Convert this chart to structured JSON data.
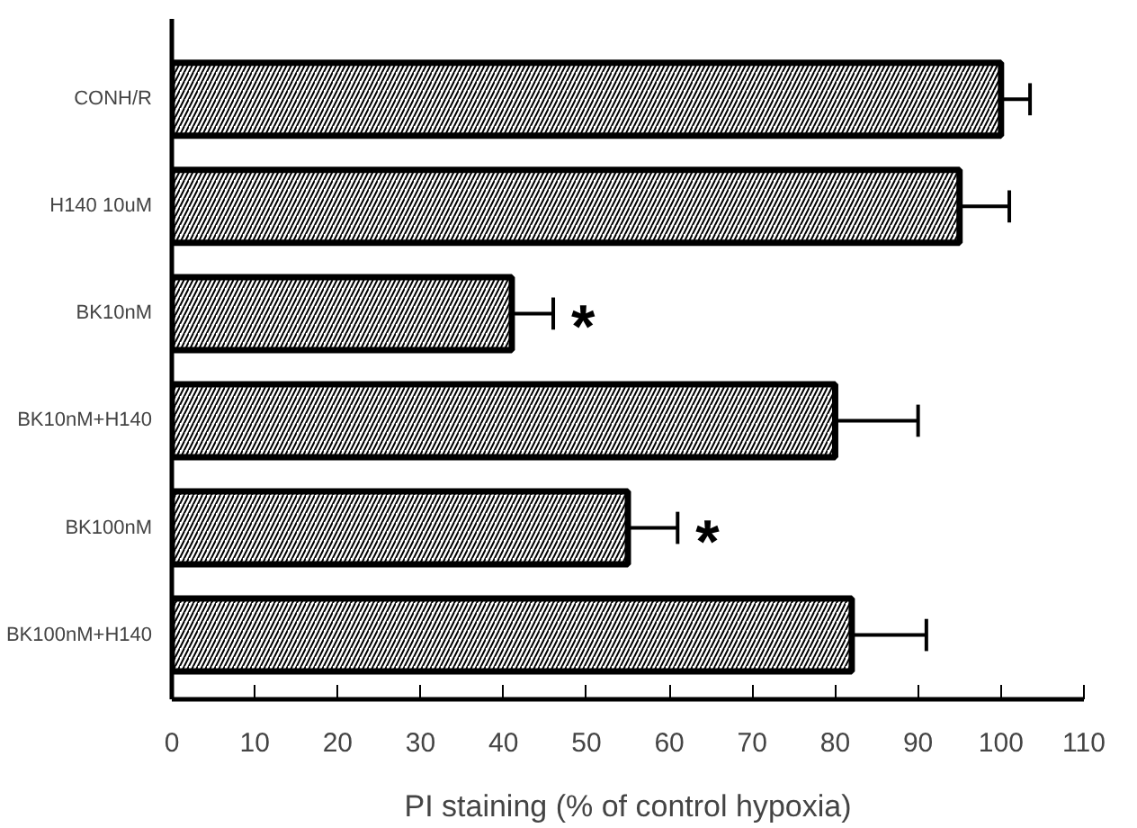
{
  "chart_data": {
    "type": "bar",
    "orientation": "horizontal",
    "xlabel": "PI staining (% of control hypoxia)",
    "categories": [
      "CONH/R",
      "H140 10uM",
      "BK10nM",
      "BK10nM+H140",
      "BK100nM",
      "BK100nM+H140"
    ],
    "values": [
      100,
      95,
      41,
      80,
      55,
      82
    ],
    "errors": [
      [
        100,
        103.5
      ],
      [
        95,
        101
      ],
      [
        41,
        46
      ],
      [
        80,
        90
      ],
      [
        55,
        61
      ],
      [
        82,
        91
      ]
    ],
    "color": "#ffffff",
    "xlim": [
      0,
      110
    ],
    "xticks": [
      0,
      10,
      20,
      30,
      40,
      50,
      60,
      70,
      80,
      90,
      100,
      110
    ],
    "grid": false,
    "annotations": [
      {
        "text": "*",
        "x": 46,
        "y": "BK10nM"
      },
      {
        "text": "*",
        "x": 61,
        "y": "BK100nM"
      }
    ]
  }
}
